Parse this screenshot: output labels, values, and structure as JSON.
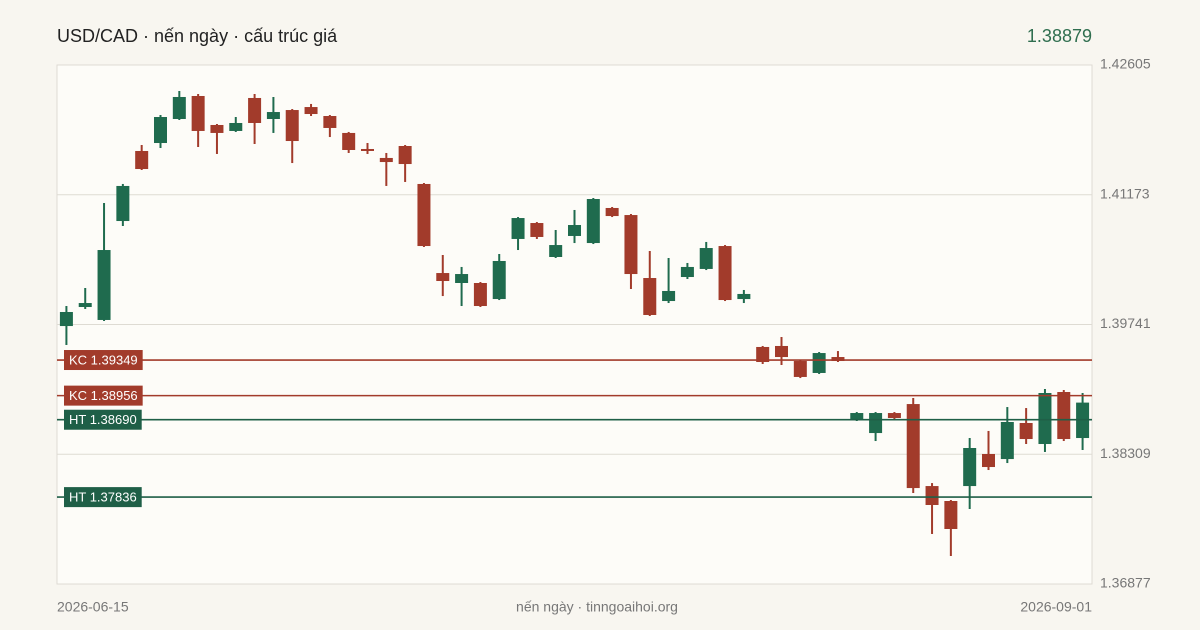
{
  "chart_data": {
    "type": "candlestick",
    "title": "USD/CAD · nến ngày · cấu trúc giá",
    "last_price": 1.38879,
    "footer": "nến ngày · tinngoaihoi.org",
    "categories": [
      "2026-06-15",
      null,
      null,
      null,
      null,
      null,
      null,
      null,
      null,
      null,
      null,
      null,
      null,
      null,
      null,
      null,
      null,
      null,
      null,
      null,
      null,
      null,
      null,
      null,
      null,
      null,
      null,
      null,
      null,
      null,
      null,
      null,
      null,
      null,
      null,
      null,
      null,
      null,
      null,
      null,
      null,
      null,
      null,
      null,
      null,
      null,
      null,
      null,
      null,
      null,
      null,
      null,
      null,
      null,
      "2026-09-01"
    ],
    "open": [
      1.39724,
      1.39934,
      1.39791,
      1.40883,
      1.41656,
      1.41744,
      1.42009,
      1.42263,
      1.41943,
      1.41877,
      1.42241,
      1.42009,
      1.42108,
      1.42141,
      1.42042,
      1.41855,
      1.41678,
      1.41579,
      1.41711,
      1.41292,
      1.40309,
      1.40199,
      1.40199,
      1.40022,
      1.40685,
      1.40861,
      1.40486,
      1.40718,
      1.4064,
      1.41027,
      1.40949,
      1.40254,
      1.4,
      1.40265,
      1.40354,
      1.40607,
      1.40022,
      1.39493,
      1.39504,
      1.39338,
      1.39206,
      1.39382,
      1.38698,
      1.38543,
      1.38764,
      1.38863,
      1.37958,
      1.37793,
      1.37958,
      1.38312,
      1.38256,
      1.38654,
      1.38422,
      1.38996,
      1.38488
    ],
    "high": [
      1.39945,
      1.40144,
      1.41082,
      1.41292,
      1.41722,
      1.42053,
      1.42318,
      1.42285,
      1.41954,
      1.42031,
      1.42285,
      1.42252,
      1.42119,
      1.42175,
      1.42053,
      1.41866,
      1.41744,
      1.41634,
      1.41722,
      1.41303,
      1.40508,
      1.40376,
      1.4021,
      1.40519,
      1.40927,
      1.40872,
      1.40784,
      1.41005,
      1.41137,
      1.41038,
      1.4096,
      1.40552,
      1.40475,
      1.4042,
      1.40652,
      1.40618,
      1.40122,
      1.39504,
      1.39603,
      1.39349,
      1.39437,
      1.39448,
      1.38775,
      1.38775,
      1.38775,
      1.3893,
      1.37991,
      1.37804,
      1.38488,
      1.38566,
      1.3883,
      1.38819,
      1.39029,
      1.39018,
      1.38985
    ],
    "low": [
      1.39515,
      1.39912,
      1.3978,
      1.40828,
      1.41446,
      1.41689,
      1.41998,
      1.417,
      1.41623,
      1.41866,
      1.41733,
      1.41855,
      1.41523,
      1.42042,
      1.4181,
      1.41634,
      1.41623,
      1.4127,
      1.41314,
      1.40596,
      1.40055,
      1.39945,
      1.39934,
      1.40011,
      1.40563,
      1.40685,
      1.40475,
      1.4064,
      1.40629,
      1.40927,
      1.40133,
      1.39835,
      1.39978,
      1.40243,
      1.40342,
      1.4,
      1.39978,
      1.39305,
      1.39294,
      1.3915,
      1.39195,
      1.39327,
      1.38676,
      1.38455,
      1.38698,
      1.37881,
      1.37429,
      1.37186,
      1.37705,
      1.38135,
      1.38212,
      1.38422,
      1.38334,
      1.38455,
      1.38356
    ],
    "close": [
      1.39879,
      1.39978,
      1.40563,
      1.4127,
      1.41457,
      1.42031,
      1.42252,
      1.41877,
      1.41855,
      1.41965,
      1.41965,
      1.42086,
      1.41766,
      1.42064,
      1.4191,
      1.41667,
      1.41656,
      1.41534,
      1.41512,
      1.40607,
      1.40221,
      1.40298,
      1.39945,
      1.40442,
      1.40916,
      1.40707,
      1.40618,
      1.40839,
      1.41126,
      1.40938,
      1.40298,
      1.39846,
      1.40111,
      1.40376,
      1.40585,
      1.40011,
      1.40078,
      1.39327,
      1.39382,
      1.39162,
      1.39426,
      1.39338,
      1.38764,
      1.38764,
      1.38709,
      1.37936,
      1.37749,
      1.37484,
      1.38378,
      1.38168,
      1.38665,
      1.38477,
      1.38985,
      1.38477,
      1.38879
    ],
    "up_color": "#1f6b4e",
    "down_color": "#a23b2b",
    "levels": [
      {
        "label": "KC 1.39349",
        "value": 1.39349,
        "color": "#a23b2b"
      },
      {
        "label": "KC 1.38956",
        "value": 1.38956,
        "color": "#a23b2b"
      },
      {
        "label": "HT 1.38690",
        "value": 1.3869,
        "color": "#1f5f47"
      },
      {
        "label": "HT 1.37836",
        "value": 1.37836,
        "color": "#1f5f47"
      }
    ],
    "ylim": [
      1.36877,
      1.42605
    ],
    "yticks": [
      1.36877,
      1.38309,
      1.39741,
      1.41173,
      1.42605
    ],
    "grid": true
  }
}
